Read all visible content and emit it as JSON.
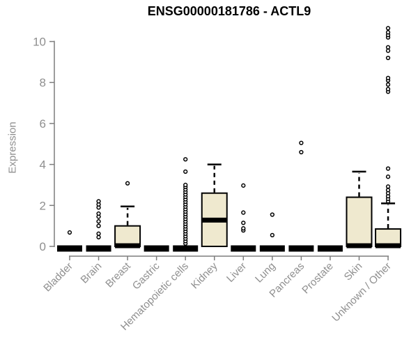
{
  "title": "ENSG00000181786 - ACTL9",
  "colors": {
    "box_fill": "#efe9cf",
    "box_border": "#000000",
    "median": "#000000",
    "axis_line": "#7d7d7d",
    "axis_text": "#8f8f8f",
    "outlier_stroke": "#000000",
    "background": "#ffffff"
  },
  "chart_data": {
    "type": "boxplot",
    "title": "ENSG00000181786 - ACTL9",
    "xlabel": "",
    "ylabel": "Expression",
    "ylim": [
      0,
      10.8
    ],
    "y_ticks": [
      0,
      2,
      4,
      6,
      8,
      10
    ],
    "grid": false,
    "legend": "none",
    "categories": [
      "Bladder",
      "Brain",
      "Breast",
      "Gastric",
      "Hematopoietic cells",
      "Kidney",
      "Liver",
      "Lung",
      "Pancreas",
      "Prostate",
      "Skin",
      "Unknown / Other"
    ],
    "series": [
      {
        "name": "Bladder",
        "q1": 0,
        "median": 0,
        "q3": 0,
        "whisker_low": 0,
        "whisker_high": 0,
        "outliers": [
          0.68
        ]
      },
      {
        "name": "Brain",
        "q1": 0,
        "median": 0,
        "q3": 0,
        "whisker_low": 0,
        "whisker_high": 0,
        "outliers": [
          0.45,
          0.62,
          1.0,
          1.22,
          1.45,
          1.6,
          1.9,
          2.05,
          2.2
        ]
      },
      {
        "name": "Breast",
        "q1": 0,
        "median": 0.05,
        "q3": 1.0,
        "whisker_low": 0,
        "whisker_high": 1.95,
        "outliers": [
          3.08
        ]
      },
      {
        "name": "Gastric",
        "q1": 0,
        "median": 0,
        "q3": 0,
        "whisker_low": 0,
        "whisker_high": 0,
        "outliers": []
      },
      {
        "name": "Hematopoietic cells",
        "q1": 0,
        "median": 0,
        "q3": 0,
        "whisker_low": 0,
        "whisker_high": 0,
        "outliers": [
          0.14,
          0.26,
          0.38,
          0.5,
          0.62,
          0.74,
          0.86,
          0.98,
          1.1,
          1.22,
          1.34,
          1.46,
          1.58,
          1.7,
          1.82,
          1.94,
          2.06,
          2.18,
          2.3,
          2.42,
          2.54,
          2.66,
          2.78,
          2.9,
          3.0,
          3.65,
          4.25
        ]
      },
      {
        "name": "Kidney",
        "q1": 0,
        "median": 1.3,
        "q3": 2.6,
        "whisker_low": 0,
        "whisker_high": 4.0,
        "outliers": []
      },
      {
        "name": "Liver",
        "q1": 0,
        "median": 0,
        "q3": 0,
        "whisker_low": 0,
        "whisker_high": 0,
        "outliers": [
          0.78,
          0.88,
          1.15,
          1.65,
          2.97
        ]
      },
      {
        "name": "Lung",
        "q1": 0,
        "median": 0,
        "q3": 0,
        "whisker_low": 0,
        "whisker_high": 0,
        "outliers": [
          0.55,
          1.55
        ]
      },
      {
        "name": "Pancreas",
        "q1": 0,
        "median": 0,
        "q3": 0,
        "whisker_low": 0,
        "whisker_high": 0,
        "outliers": [
          4.6,
          5.05
        ]
      },
      {
        "name": "Prostate",
        "q1": 0,
        "median": 0,
        "q3": 0,
        "whisker_low": 0,
        "whisker_high": 0,
        "outliers": []
      },
      {
        "name": "Skin",
        "q1": 0,
        "median": 0.05,
        "q3": 2.4,
        "whisker_low": 0,
        "whisker_high": 3.65,
        "outliers": []
      },
      {
        "name": "Unknown / Other",
        "q1": 0,
        "median": 0.05,
        "q3": 0.85,
        "whisker_low": 0,
        "whisker_high": 2.1,
        "outliers": [
          2.2,
          2.32,
          2.45,
          2.6,
          2.75,
          2.92,
          3.4,
          3.8,
          7.55,
          7.68,
          7.9,
          8.1,
          8.22,
          9.2,
          9.55,
          9.72,
          10.2,
          10.32,
          10.45,
          10.65
        ]
      }
    ]
  }
}
